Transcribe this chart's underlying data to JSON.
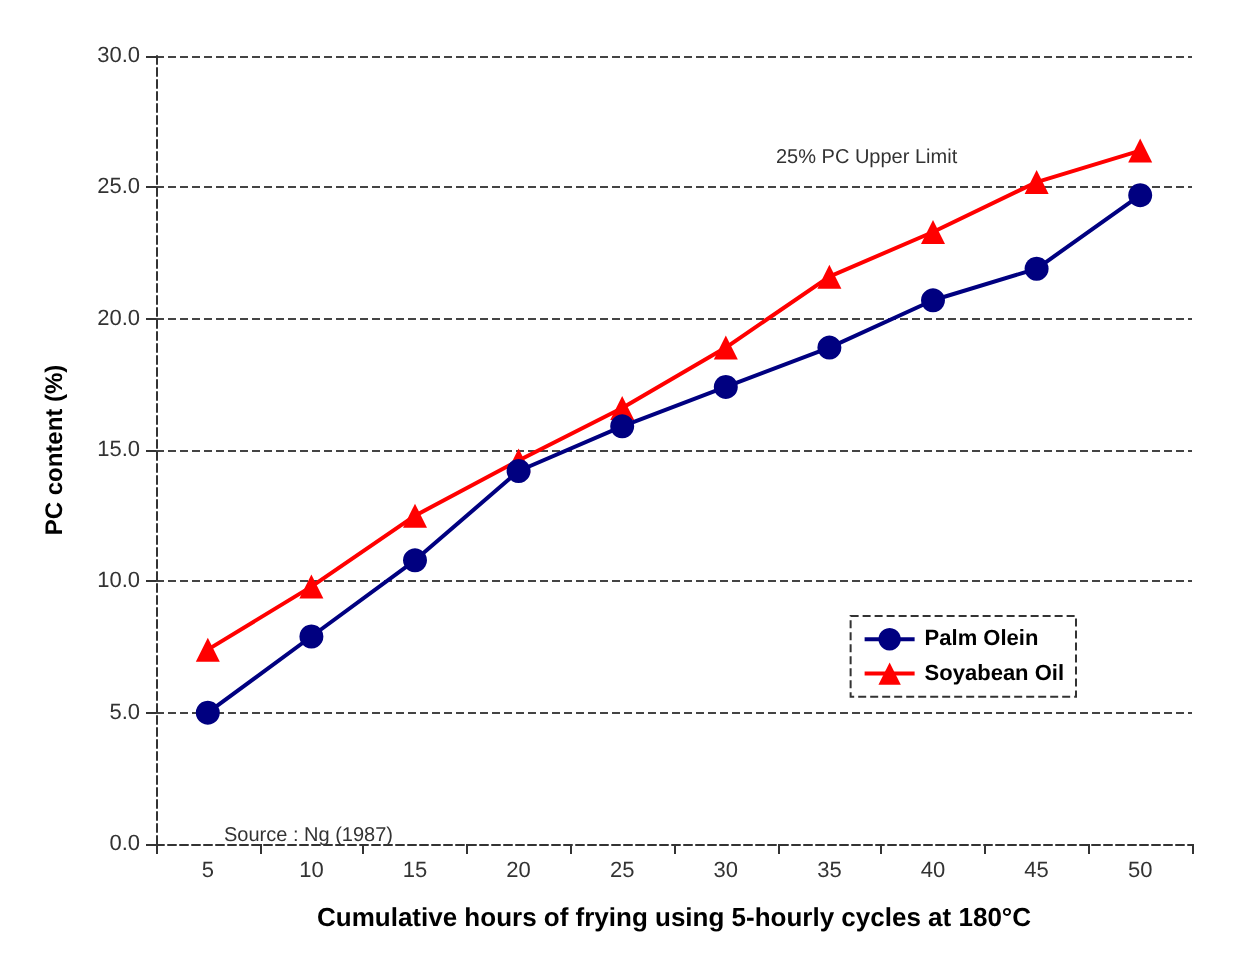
{
  "chart_data": {
    "type": "line",
    "xlabel": "Cumulative hours of frying using 5-hourly cycles at 180°C",
    "ylabel": "PC content (%)",
    "categories": [
      "5",
      "10",
      "15",
      "20",
      "25",
      "30",
      "35",
      "40",
      "45",
      "50"
    ],
    "series": [
      {
        "name": "Palm Olein",
        "color": "#000080",
        "marker": "circle",
        "values": [
          5.0,
          7.9,
          10.8,
          14.2,
          15.9,
          17.4,
          18.9,
          20.7,
          21.9,
          24.7
        ]
      },
      {
        "name": "Soyabean Oil",
        "color": "#ff0000",
        "marker": "triangle",
        "values": [
          7.4,
          9.8,
          12.5,
          14.6,
          16.6,
          18.9,
          21.6,
          23.3,
          25.2,
          26.4
        ]
      }
    ],
    "ylim": [
      0,
      30
    ],
    "yticks": [
      {
        "value": 0,
        "label": "0.0"
      },
      {
        "value": 5,
        "label": "5.0"
      },
      {
        "value": 10,
        "label": "10.0"
      },
      {
        "value": 15,
        "label": "15.0"
      },
      {
        "value": 20,
        "label": "20.0"
      },
      {
        "value": 25,
        "label": "25.0"
      },
      {
        "value": 30,
        "label": "30.0"
      }
    ],
    "grid": "y",
    "legend": "right",
    "annotations": [
      "25% PC Upper Limit",
      "Source : Ng (1987)"
    ]
  }
}
